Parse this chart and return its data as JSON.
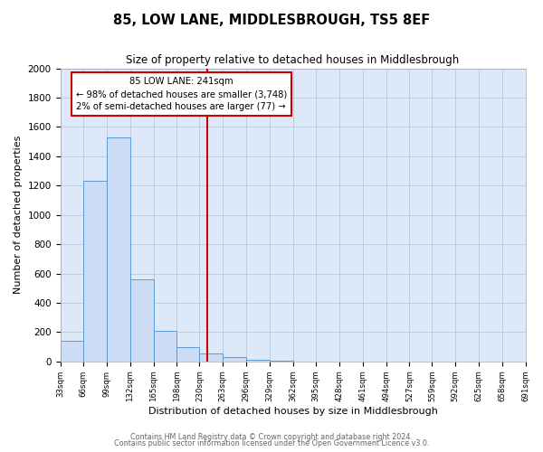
{
  "title": "85, LOW LANE, MIDDLESBROUGH, TS5 8EF",
  "subtitle": "Size of property relative to detached houses in Middlesbrough",
  "xlabel": "Distribution of detached houses by size in Middlesbrough",
  "ylabel": "Number of detached properties",
  "bar_edges": [
    33,
    66,
    99,
    132,
    165,
    198,
    230,
    263,
    296,
    329,
    362,
    395,
    428,
    461,
    494,
    527,
    559,
    592,
    625,
    658,
    691
  ],
  "bar_heights": [
    140,
    1230,
    1530,
    560,
    210,
    95,
    55,
    30,
    10,
    5,
    2,
    1,
    0,
    0,
    0,
    0,
    0,
    0,
    0,
    0
  ],
  "bar_color": "#ccddf5",
  "bar_edgecolor": "#5b9bd5",
  "property_line_x": 241,
  "property_line_color": "#cc0000",
  "annotation_line1": "85 LOW LANE: 241sqm",
  "annotation_line2": "← 98% of detached houses are smaller (3,748)",
  "annotation_line3": "2% of semi-detached houses are larger (77) →",
  "annotation_box_color": "#ffffff",
  "annotation_box_edgecolor": "#cc0000",
  "ylim": [
    0,
    2000
  ],
  "yticks": [
    0,
    200,
    400,
    600,
    800,
    1000,
    1200,
    1400,
    1600,
    1800,
    2000
  ],
  "tick_labels": [
    "33sqm",
    "66sqm",
    "99sqm",
    "132sqm",
    "165sqm",
    "198sqm",
    "230sqm",
    "263sqm",
    "296sqm",
    "329sqm",
    "362sqm",
    "395sqm",
    "428sqm",
    "461sqm",
    "494sqm",
    "527sqm",
    "559sqm",
    "592sqm",
    "625sqm",
    "658sqm",
    "691sqm"
  ],
  "footer_line1": "Contains HM Land Registry data © Crown copyright and database right 2024.",
  "footer_line2": "Contains public sector information licensed under the Open Government Licence v3.0.",
  "fig_background": "#ffffff",
  "plot_background": "#dde8f8",
  "grid_color": "#b8c8dc"
}
